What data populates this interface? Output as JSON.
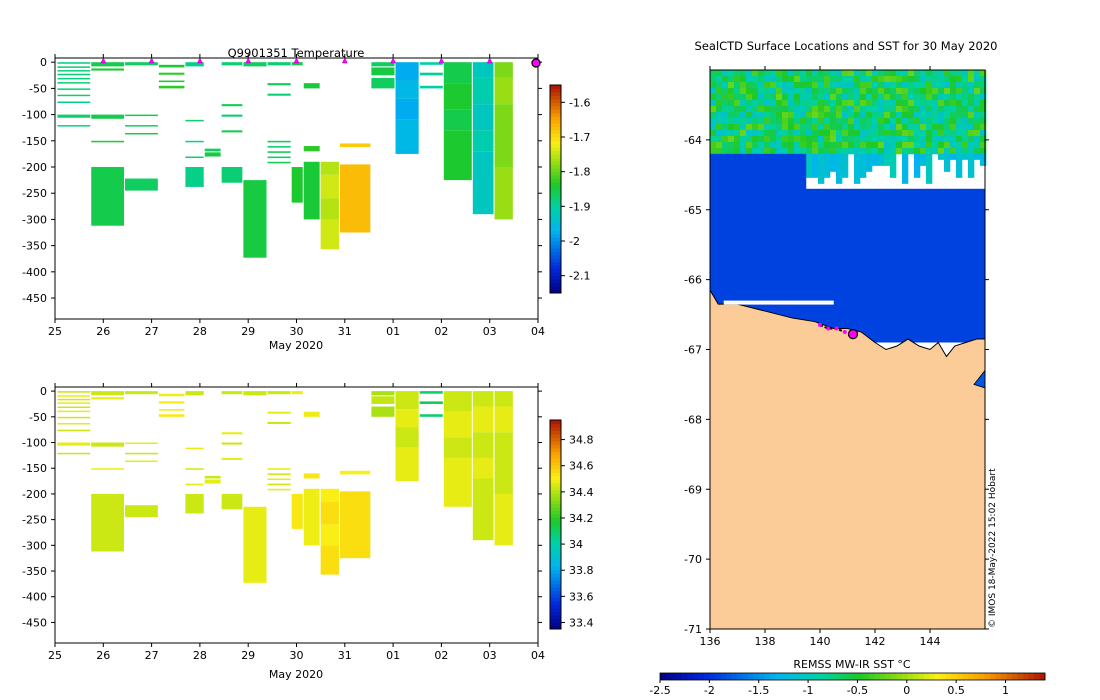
{
  "chart_data": [
    {
      "type": "heatmap",
      "title": "Q9901351  Temperature",
      "xlabel": "May 2020",
      "ylabel": "",
      "x_tick_labels": [
        "25",
        "26",
        "27",
        "28",
        "29",
        "30",
        "31",
        "01",
        "02",
        "03",
        "04"
      ],
      "y_ticks": [
        0,
        -50,
        -100,
        -150,
        -200,
        -250,
        -300,
        -350,
        -400,
        -450
      ],
      "ylim": [
        -490,
        8
      ],
      "colorbar": {
        "ticks": [
          -1.6,
          -1.7,
          -1.8,
          -1.9,
          -2,
          -2.1
        ],
        "range": [
          -2.15,
          -1.55
        ]
      },
      "profiles": [
        {
          "d": 25.05,
          "v": -1.88,
          "bands": [
            [
              0,
              -3
            ],
            [
              -8,
              -10
            ],
            [
              -15,
              -17
            ],
            [
              -22,
              -24
            ],
            [
              -30,
              -32
            ],
            [
              -38,
              -40
            ],
            [
              -50,
              -52
            ],
            [
              -62,
              -64
            ],
            [
              -75,
              -77
            ],
            [
              -100,
              -106
            ],
            [
              -120,
              -122
            ]
          ]
        },
        {
          "d": 25.75,
          "v": -1.85,
          "bands": [
            [
              0,
              -8
            ],
            [
              -12,
              -16
            ],
            [
              -100,
              -108
            ],
            [
              -150,
              -152
            ],
            [
              -200,
              -312
            ]
          ]
        },
        {
          "d": 26.45,
          "v": -1.86,
          "bands": [
            [
              0,
              -6
            ],
            [
              -100,
              -102
            ],
            [
              -120,
              -122
            ],
            [
              -135,
              -137
            ],
            [
              -222,
              -245
            ]
          ]
        },
        {
          "d": 27.15,
          "v": -1.84,
          "bands": [
            [
              -5,
              -10
            ],
            [
              -20,
              -24
            ],
            [
              -35,
              -38
            ],
            [
              -45,
              -50
            ]
          ]
        },
        {
          "d": 27.7,
          "v": -1.88,
          "bands": [
            [
              0,
              -8
            ],
            [
              -110,
              -112
            ],
            [
              -150,
              -152
            ],
            [
              -180,
              -182
            ],
            [
              -200,
              -238
            ]
          ]
        },
        {
          "d": 28.1,
          "v": -1.86,
          "bands": [
            [
              -165,
              -170
            ],
            [
              -172,
              -180
            ]
          ]
        },
        {
          "d": 28.45,
          "v": -1.87,
          "bands": [
            [
              0,
              -6
            ],
            [
              -80,
              -84
            ],
            [
              -100,
              -104
            ],
            [
              -130,
              -134
            ],
            [
              -200,
              -230
            ]
          ]
        },
        {
          "d": 28.9,
          "v": -1.86,
          "bands": [
            [
              0,
              -8
            ],
            [
              -225,
              -373
            ]
          ]
        },
        {
          "d": 29.4,
          "v": -1.87,
          "bands": [
            [
              0,
              -6
            ],
            [
              -40,
              -44
            ],
            [
              -60,
              -64
            ],
            [
              -150,
              -153
            ],
            [
              -160,
              -163
            ],
            [
              -170,
              -173
            ],
            [
              -180,
              -183
            ],
            [
              -190,
              -193
            ]
          ]
        },
        {
          "d": 29.9,
          "v": -1.85,
          "bands": [
            [
              0,
              -6
            ],
            [
              -200,
              -268
            ]
          ]
        },
        {
          "d": 30.15,
          "v": -1.84,
          "bands": [
            [
              -40,
              -50
            ],
            [
              -160,
              -170
            ],
            [
              -190,
              -300
            ]
          ]
        },
        {
          "d": 30.5,
          "v": -1.75,
          "bands": [
            [
              -190,
              -215
            ],
            [
              -215,
              -260
            ],
            [
              -260,
              -300
            ],
            [
              -300,
              -357
            ]
          ]
        },
        {
          "d": 30.9,
          "v": -1.68,
          "bands": [
            [
              -155,
              -162
            ],
            [
              -195,
              -325
            ]
          ]
        },
        {
          "d": 31.55,
          "v": -1.86,
          "bands": [
            [
              0,
              -8
            ],
            [
              -10,
              -25
            ],
            [
              -30,
              -50
            ]
          ]
        },
        {
          "d": 32.05,
          "v": -1.97,
          "bands": [
            [
              0,
              -35
            ],
            [
              -35,
              -70
            ],
            [
              -70,
              -110
            ],
            [
              -110,
              -175
            ]
          ]
        },
        {
          "d": 32.55,
          "v": -1.9,
          "bands": [
            [
              0,
              -5
            ],
            [
              -20,
              -25
            ],
            [
              -45,
              -50
            ]
          ]
        },
        {
          "d": 33.05,
          "v": -1.85,
          "bands": [
            [
              0,
              -40
            ],
            [
              -40,
              -90
            ],
            [
              -90,
              -130
            ],
            [
              -130,
              -225
            ]
          ]
        },
        {
          "d": 33.65,
          "v": -1.92,
          "bands": [
            [
              0,
              -30
            ],
            [
              -30,
              -80
            ],
            [
              -80,
              -130
            ],
            [
              -130,
              -170
            ],
            [
              -170,
              -290
            ]
          ]
        },
        {
          "d": 34.1,
          "v": -1.78,
          "bands": [
            [
              0,
              -30
            ],
            [
              -30,
              -80
            ],
            [
              -80,
              -200
            ],
            [
              -200,
              -300
            ]
          ]
        }
      ],
      "surface_markers": [
        26,
        27,
        28,
        29,
        30,
        31,
        32,
        33,
        34
      ],
      "latest_marker": 35
    },
    {
      "type": "heatmap",
      "title": "",
      "xlabel": "May 2020",
      "ylabel": "",
      "x_tick_labels": [
        "25",
        "26",
        "27",
        "28",
        "29",
        "30",
        "31",
        "01",
        "02",
        "03",
        "04"
      ],
      "y_ticks": [
        0,
        -50,
        -100,
        -150,
        -200,
        -250,
        -300,
        -350,
        -400,
        -450
      ],
      "ylim": [
        -490,
        8
      ],
      "colorbar": {
        "ticks": [
          34.8,
          34.6,
          34.4,
          34.2,
          34,
          33.8,
          33.6,
          33.4
        ],
        "range": [
          33.35,
          34.95
        ]
      },
      "profiles": [
        {
          "d": 25.05,
          "v": 34.45,
          "bands": [
            [
              0,
              -3
            ],
            [
              -8,
              -10
            ],
            [
              -15,
              -17
            ],
            [
              -22,
              -24
            ],
            [
              -30,
              -32
            ],
            [
              -38,
              -40
            ],
            [
              -50,
              -52
            ],
            [
              -62,
              -64
            ],
            [
              -75,
              -77
            ],
            [
              -100,
              -106
            ],
            [
              -120,
              -122
            ]
          ]
        },
        {
          "d": 25.75,
          "v": 34.45,
          "bands": [
            [
              0,
              -8
            ],
            [
              -12,
              -16
            ],
            [
              -100,
              -108
            ],
            [
              -150,
              -152
            ],
            [
              -200,
              -312
            ]
          ]
        },
        {
          "d": 26.45,
          "v": 34.45,
          "bands": [
            [
              0,
              -6
            ],
            [
              -100,
              -102
            ],
            [
              -120,
              -122
            ],
            [
              -135,
              -137
            ],
            [
              -222,
              -245
            ]
          ]
        },
        {
          "d": 27.15,
          "v": 34.5,
          "bands": [
            [
              -5,
              -10
            ],
            [
              -20,
              -24
            ],
            [
              -35,
              -38
            ],
            [
              -45,
              -50
            ]
          ]
        },
        {
          "d": 27.7,
          "v": 34.45,
          "bands": [
            [
              0,
              -8
            ],
            [
              -110,
              -112
            ],
            [
              -150,
              -152
            ],
            [
              -180,
              -182
            ],
            [
              -200,
              -238
            ]
          ]
        },
        {
          "d": 28.1,
          "v": 34.45,
          "bands": [
            [
              -165,
              -170
            ],
            [
              -172,
              -180
            ]
          ]
        },
        {
          "d": 28.45,
          "v": 34.45,
          "bands": [
            [
              0,
              -6
            ],
            [
              -80,
              -84
            ],
            [
              -100,
              -104
            ],
            [
              -130,
              -134
            ],
            [
              -200,
              -230
            ]
          ]
        },
        {
          "d": 28.9,
          "v": 34.45,
          "bands": [
            [
              0,
              -8
            ],
            [
              -225,
              -373
            ]
          ]
        },
        {
          "d": 29.4,
          "v": 34.45,
          "bands": [
            [
              0,
              -6
            ],
            [
              -40,
              -44
            ],
            [
              -60,
              -64
            ],
            [
              -150,
              -153
            ],
            [
              -160,
              -163
            ],
            [
              -170,
              -173
            ],
            [
              -180,
              -183
            ],
            [
              -190,
              -193
            ]
          ]
        },
        {
          "d": 29.9,
          "v": 34.5,
          "bands": [
            [
              0,
              -6
            ],
            [
              -200,
              -268
            ]
          ]
        },
        {
          "d": 30.15,
          "v": 34.5,
          "bands": [
            [
              -40,
              -50
            ],
            [
              -160,
              -170
            ],
            [
              -190,
              -300
            ]
          ]
        },
        {
          "d": 30.5,
          "v": 34.52,
          "bands": [
            [
              -190,
              -215
            ],
            [
              -215,
              -260
            ],
            [
              -260,
              -300
            ],
            [
              -300,
              -357
            ]
          ]
        },
        {
          "d": 30.9,
          "v": 34.52,
          "bands": [
            [
              -155,
              -162
            ],
            [
              -195,
              -325
            ]
          ]
        },
        {
          "d": 31.55,
          "v": 34.4,
          "bands": [
            [
              0,
              -8
            ],
            [
              -10,
              -25
            ],
            [
              -30,
              -50
            ]
          ]
        },
        {
          "d": 32.05,
          "v": 34.45,
          "bands": [
            [
              0,
              -35
            ],
            [
              -35,
              -70
            ],
            [
              -70,
              -110
            ],
            [
              -110,
              -175
            ]
          ]
        },
        {
          "d": 32.55,
          "v": 34.1,
          "bands": [
            [
              0,
              -5
            ],
            [
              -20,
              -25
            ],
            [
              -45,
              -50
            ]
          ]
        },
        {
          "d": 33.05,
          "v": 34.45,
          "bands": [
            [
              0,
              -40
            ],
            [
              -40,
              -90
            ],
            [
              -90,
              -130
            ],
            [
              -130,
              -225
            ]
          ]
        },
        {
          "d": 33.65,
          "v": 34.45,
          "bands": [
            [
              0,
              -30
            ],
            [
              -30,
              -80
            ],
            [
              -80,
              -130
            ],
            [
              -130,
              -170
            ],
            [
              -170,
              -290
            ]
          ]
        },
        {
          "d": 34.1,
          "v": 34.45,
          "bands": [
            [
              0,
              -30
            ],
            [
              -30,
              -80
            ],
            [
              -80,
              -200
            ],
            [
              -200,
              -300
            ]
          ]
        }
      ]
    },
    {
      "type": "heatmap",
      "title": "SealCTD Surface Locations and SST for 30 May 2020",
      "xlabel": "REMSS MW-IR SST °C",
      "ylabel": "",
      "x_ticks": [
        136,
        138,
        140,
        142,
        144
      ],
      "y_ticks": [
        -64,
        -65,
        -66,
        -67,
        -68,
        -69,
        -70,
        -71
      ],
      "xlim": [
        136,
        146
      ],
      "ylim": [
        -71,
        -63.0
      ],
      "colorbar": {
        "ticks": [
          -2.5,
          -2,
          -1.5,
          -1,
          -0.5,
          0,
          0.5,
          1
        ],
        "range": [
          -2.5,
          1.4
        ]
      },
      "sst_regions": [
        {
          "name": "open-ocean-north",
          "lat_range": [
            -63.0,
            -64.2
          ],
          "sst_c": -0.65
        },
        {
          "name": "ice-shelf-band",
          "lat_range": [
            -64.2,
            -66.8
          ],
          "sst_c": -1.9
        }
      ],
      "track": [
        [
          140.0,
          -66.65
        ],
        [
          140.3,
          -66.7
        ],
        [
          140.6,
          -66.7
        ],
        [
          140.9,
          -66.75
        ],
        [
          141.2,
          -66.78
        ]
      ],
      "latest_position": [
        141.2,
        -66.78
      ],
      "watermark": "© IMOS 18-May-2022 15:02 Hobart"
    }
  ]
}
